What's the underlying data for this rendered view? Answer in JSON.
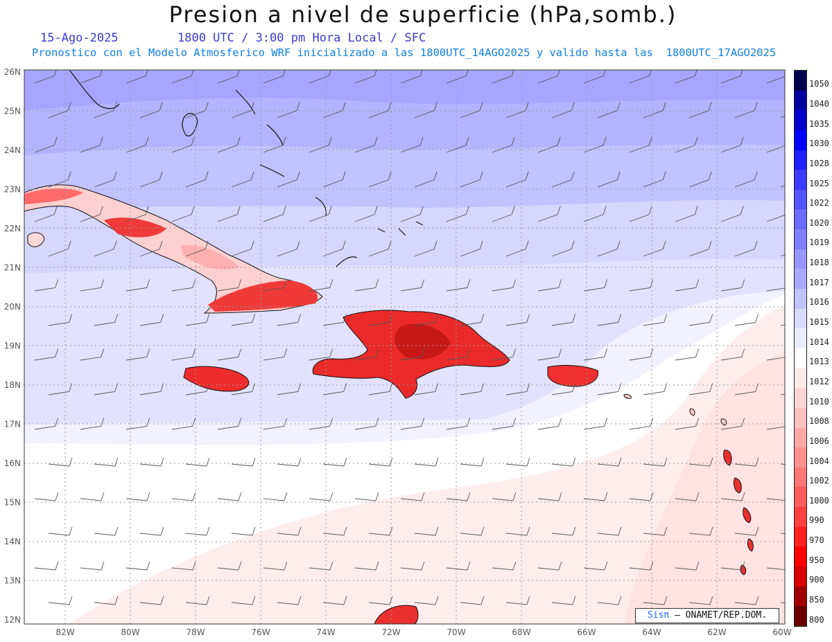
{
  "header": {
    "title": "Presion a nivel de superficie (hPa,somb.)",
    "date": "15-Ago-2025",
    "time": "1800 UTC / 3:00 pm Hora Local / SFC",
    "description": "Pronostico con el Modelo Atmosferico WRF inicializado a las 1800UTC_14AGO2025 y valido hasta las  1800UTC_17AGO2025"
  },
  "map": {
    "lon_range": [
      -83.2,
      -59.9
    ],
    "lat_range": [
      11.9,
      26.1
    ],
    "lon_ticks": [
      "82W",
      "80W",
      "78W",
      "76W",
      "74W",
      "72W",
      "70W",
      "68W",
      "66W",
      "64W",
      "62W",
      "60W"
    ],
    "lat_ticks": [
      "26N",
      "25N",
      "24N",
      "23N",
      "22N",
      "21N",
      "20N",
      "19N",
      "18N",
      "17N",
      "16N",
      "15N",
      "14N",
      "13N",
      "12N"
    ],
    "grid": "dotted"
  },
  "legend": {
    "labels": [
      "1050",
      "1040",
      "1035",
      "1030",
      "1028",
      "1025",
      "1022",
      "1020",
      "1019",
      "1018",
      "1017",
      "1016",
      "1015",
      "1014",
      "1013",
      "1012",
      "1010",
      "1008",
      "1006",
      "1004",
      "1002",
      "1000",
      "990",
      "970",
      "950",
      "900",
      "850",
      "800"
    ],
    "colors": [
      "#00004e",
      "#0000a0",
      "#0000cc",
      "#0000ff",
      "#1f1fff",
      "#3b3bff",
      "#5353ff",
      "#6a6aff",
      "#8080ff",
      "#9797ff",
      "#a8a8ff",
      "#c2c2ff",
      "#dadaff",
      "#ececff",
      "#ffffff",
      "#ffeaea",
      "#ffd6d6",
      "#ffc0c0",
      "#ffa8a8",
      "#ff9090",
      "#ff7676",
      "#ff5c5c",
      "#ff4040",
      "#ff2020",
      "#ff0000",
      "#d80000",
      "#a00000",
      "#6a0000"
    ]
  },
  "credit": {
    "brand": "Sisπ",
    "text": "– ONAMET/REP.DOM."
  }
}
